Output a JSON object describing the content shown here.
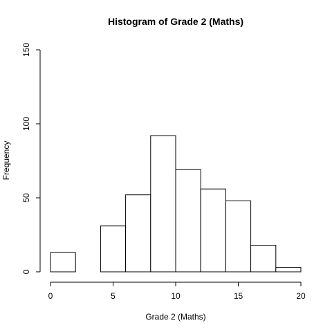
{
  "chart_data": {
    "type": "bar",
    "title": "Histogram of Grade 2 (Maths)",
    "xlabel": "Grade 2 (Maths)",
    "ylabel": "Frequency",
    "bins": [
      [
        0,
        2
      ],
      [
        2,
        4
      ],
      [
        4,
        6
      ],
      [
        6,
        8
      ],
      [
        8,
        10
      ],
      [
        10,
        12
      ],
      [
        12,
        14
      ],
      [
        14,
        16
      ],
      [
        16,
        18
      ],
      [
        18,
        20
      ]
    ],
    "values": [
      13,
      0,
      31,
      52,
      92,
      69,
      56,
      48,
      18,
      3
    ],
    "xlim": [
      0,
      20
    ],
    "ylim": [
      0,
      150
    ],
    "x_ticks": [
      "0",
      "5",
      "10",
      "15",
      "20"
    ],
    "y_ticks": [
      "0",
      "50",
      "100",
      "150"
    ],
    "grid": false,
    "legend": "none"
  }
}
